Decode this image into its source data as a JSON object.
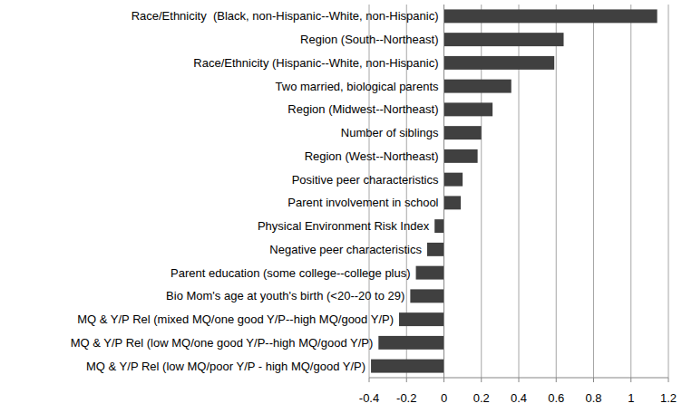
{
  "chart_data": {
    "type": "bar",
    "orientation": "horizontal",
    "categories": [
      "Race/Ethnicity  (Black, non-Hispanic--White, non-Hispanic)",
      "Region (South--Northeast)",
      "Race/Ethnicity (Hispanic--White, non-Hispanic)",
      "Two married, biological parents",
      "Region (Midwest--Northeast)",
      "Number of siblings",
      "Region (West--Northeast)",
      "Positive peer characteristics",
      "Parent involvement in school",
      "Physical Environment Risk Index",
      "Negative peer characteristics",
      "Parent education (some college--college plus)",
      "Bio Mom's age at youth's birth (<20--20 to 29)",
      "MQ & Y/P Rel (mixed MQ/one good Y/P--high MQ/good Y/P)",
      "MQ & Y/P Rel (low MQ/one good Y/P--high MQ/good Y/P)",
      "MQ & Y/P Rel (low MQ/poor Y/P - high MQ/good Y/P)"
    ],
    "values": [
      1.14,
      0.64,
      0.59,
      0.36,
      0.26,
      0.2,
      0.18,
      0.1,
      0.09,
      -0.05,
      -0.09,
      -0.15,
      -0.18,
      -0.24,
      -0.35,
      -0.39
    ],
    "color": "#404040",
    "xlim": [
      -0.4,
      1.2
    ],
    "xticks": [
      -0.4,
      -0.2,
      0,
      0.2,
      0.4,
      0.6,
      0.8,
      1,
      1.2
    ],
    "grid": true
  }
}
